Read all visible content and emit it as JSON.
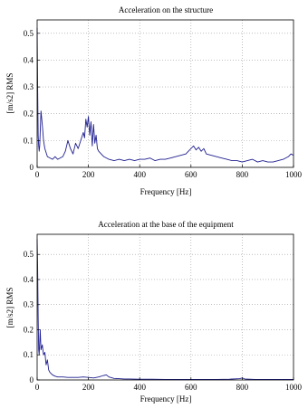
{
  "chart_data": [
    {
      "type": "line",
      "title": "Acceleration on the structure",
      "xlabel": "Frequency [Hz]",
      "ylabel": "[m/s2] RMS",
      "xlim": [
        0,
        1000
      ],
      "ylim": [
        0,
        0.55
      ],
      "xticks": [
        "0",
        "200",
        "400",
        "600",
        "800",
        "1000"
      ],
      "yticks": [
        "0",
        "0.1",
        "0.2",
        "0.3",
        "0.4",
        "0.5"
      ],
      "grid": true,
      "series": [
        {
          "color": "#1f1f8f",
          "x": [
            0,
            2,
            4,
            6,
            8,
            10,
            15,
            20,
            25,
            30,
            40,
            50,
            60,
            70,
            80,
            90,
            100,
            110,
            120,
            130,
            140,
            150,
            160,
            170,
            180,
            185,
            190,
            195,
            200,
            205,
            210,
            215,
            220,
            225,
            230,
            235,
            240,
            250,
            260,
            280,
            300,
            320,
            340,
            360,
            380,
            400,
            420,
            440,
            460,
            480,
            500,
            520,
            540,
            560,
            580,
            590,
            600,
            610,
            620,
            630,
            640,
            650,
            660,
            680,
            700,
            720,
            740,
            760,
            780,
            800,
            820,
            840,
            860,
            880,
            900,
            920,
            940,
            960,
            980,
            990,
            1000
          ],
          "y": [
            0.52,
            0.3,
            0.12,
            0.08,
            0.06,
            0.08,
            0.21,
            0.16,
            0.1,
            0.07,
            0.04,
            0.035,
            0.03,
            0.04,
            0.03,
            0.035,
            0.04,
            0.06,
            0.1,
            0.07,
            0.05,
            0.09,
            0.07,
            0.1,
            0.13,
            0.11,
            0.18,
            0.15,
            0.19,
            0.12,
            0.17,
            0.08,
            0.16,
            0.09,
            0.12,
            0.07,
            0.06,
            0.05,
            0.04,
            0.03,
            0.025,
            0.03,
            0.025,
            0.03,
            0.025,
            0.03,
            0.03,
            0.035,
            0.025,
            0.03,
            0.03,
            0.035,
            0.04,
            0.045,
            0.05,
            0.06,
            0.07,
            0.08,
            0.065,
            0.075,
            0.06,
            0.07,
            0.05,
            0.045,
            0.04,
            0.035,
            0.03,
            0.025,
            0.025,
            0.02,
            0.025,
            0.03,
            0.02,
            0.025,
            0.02,
            0.02,
            0.025,
            0.03,
            0.04,
            0.05,
            0.045
          ]
        }
      ]
    },
    {
      "type": "line",
      "title": "Acceleration at the base of the equipment",
      "xlabel": "Frequency [Hz]",
      "ylabel": "[m/s2] RMS",
      "xlim": [
        0,
        1000
      ],
      "ylim": [
        0,
        0.58
      ],
      "xticks": [
        "0",
        "200",
        "400",
        "600",
        "800",
        "1000"
      ],
      "yticks": [
        "0",
        "0.1",
        "0.2",
        "0.3",
        "0.4",
        "0.5"
      ],
      "grid": true,
      "series": [
        {
          "color": "#1f1f8f",
          "x": [
            0,
            2,
            4,
            6,
            8,
            10,
            12,
            15,
            20,
            25,
            30,
            35,
            40,
            45,
            50,
            60,
            70,
            80,
            100,
            120,
            140,
            160,
            180,
            200,
            220,
            240,
            260,
            270,
            280,
            300,
            320,
            340,
            360,
            400,
            450,
            500,
            550,
            600,
            650,
            700,
            750,
            790,
            800,
            810,
            850,
            900,
            950,
            1000
          ],
          "y": [
            0.56,
            0.45,
            0.25,
            0.12,
            0.1,
            0.15,
            0.2,
            0.12,
            0.14,
            0.1,
            0.11,
            0.06,
            0.08,
            0.04,
            0.03,
            0.02,
            0.015,
            0.012,
            0.012,
            0.01,
            0.01,
            0.01,
            0.012,
            0.01,
            0.008,
            0.012,
            0.018,
            0.02,
            0.012,
            0.006,
            0.005,
            0.004,
            0.004,
            0.003,
            0.003,
            0.002,
            0.002,
            0.002,
            0.002,
            0.002,
            0.003,
            0.005,
            0.008,
            0.004,
            0.002,
            0.002,
            0.002,
            0.002
          ]
        }
      ]
    }
  ]
}
